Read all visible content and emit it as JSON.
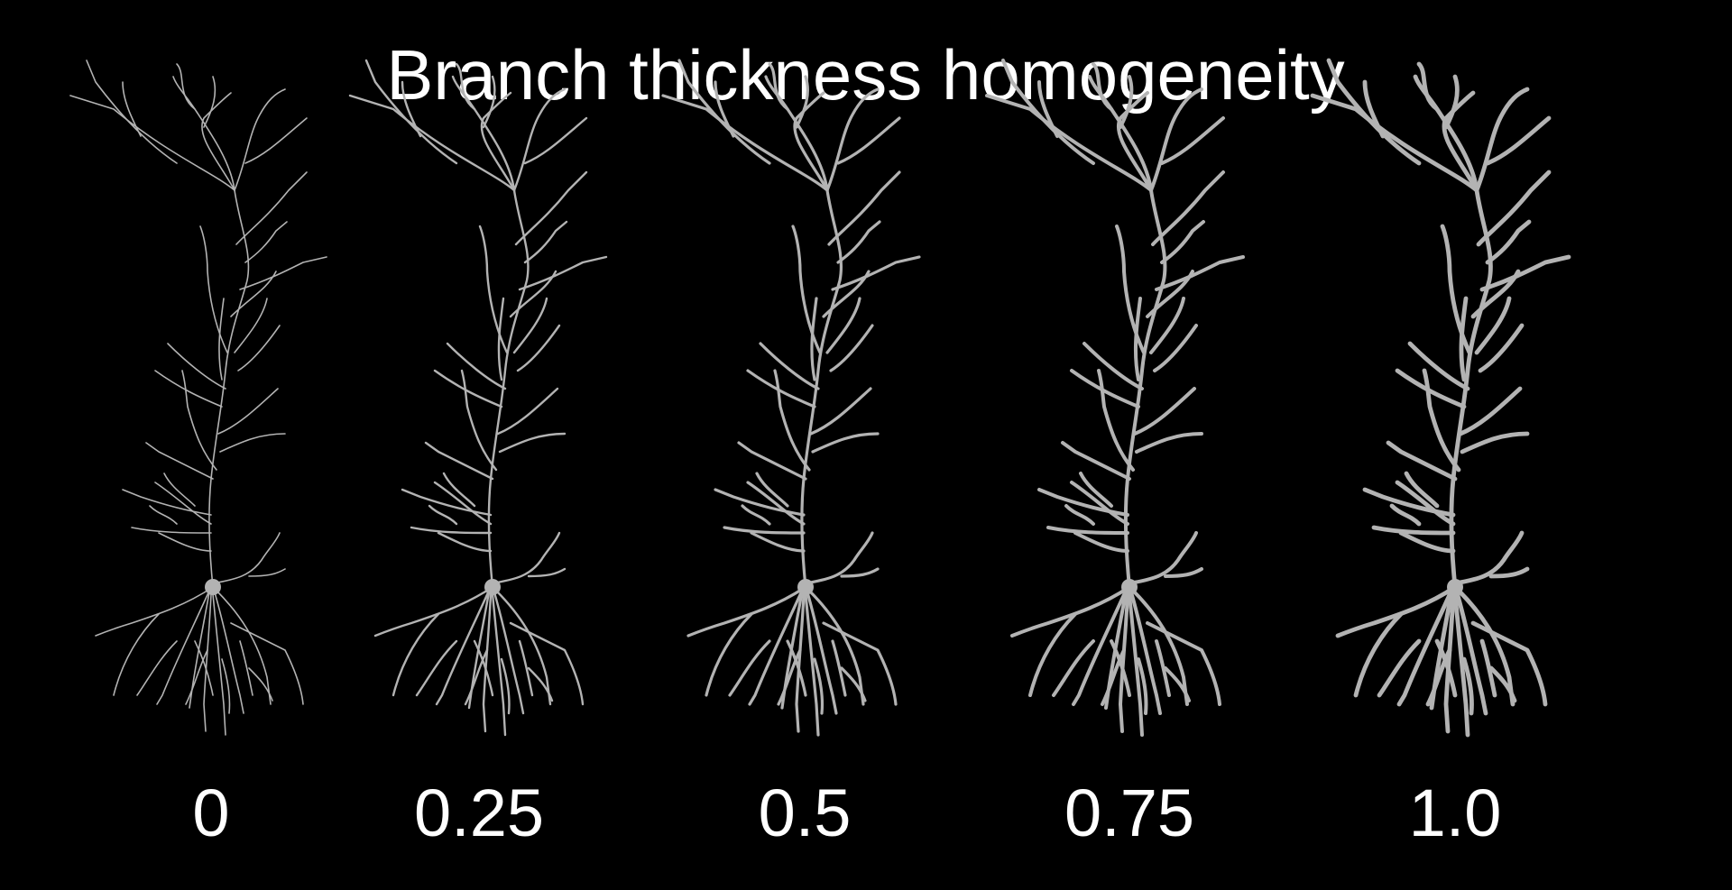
{
  "title": "Branch thickness homogeneity",
  "neurons": [
    {
      "label": "0",
      "homogeneity": 0
    },
    {
      "label": "0.25",
      "homogeneity": 0.25
    },
    {
      "label": "0.5",
      "homogeneity": 0.5
    },
    {
      "label": "0.75",
      "homogeneity": 0.75
    },
    {
      "label": "1.0",
      "homogeneity": 1.0
    }
  ],
  "colors": {
    "background": "#000000",
    "neuron": "#b3b3b3",
    "text": "#ffffff"
  }
}
